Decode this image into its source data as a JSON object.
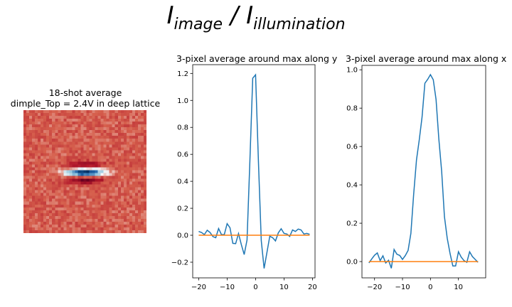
{
  "figure": {
    "suptitle_main": "I",
    "suptitle_sub1": "image",
    "suptitle_sep": " / ",
    "suptitle_sub2": "illumination"
  },
  "image_panel": {
    "title_line1": "18-shot average",
    "title_line2": "dimple_Top = 2.4V in deep lattice",
    "colormap": "RdBu"
  },
  "chart_data": [
    {
      "type": "line",
      "title": "3-pixel average around max along y",
      "xlim": [
        -22.1,
        20.9
      ],
      "ylim": [
        -0.316,
        1.265
      ],
      "xticks": [
        -20,
        -10,
        0,
        10,
        20
      ],
      "yticks": [
        -0.2,
        0.0,
        0.2,
        0.4,
        0.6,
        0.8,
        1.0,
        1.2
      ],
      "series": [
        {
          "name": "profile",
          "color": "#1f77b4",
          "x": [
            -20,
            -19,
            -18,
            -17,
            -16,
            -15,
            -14,
            -13,
            -12,
            -11,
            -10,
            -9,
            -8,
            -7,
            -6,
            -5,
            -4,
            -3,
            -2,
            -1,
            0,
            1,
            2,
            3,
            4,
            5,
            6,
            7,
            8,
            9,
            10,
            11,
            12,
            13,
            14,
            15,
            16,
            17,
            18,
            19
          ],
          "y": [
            0.028,
            0.02,
            0.005,
            0.037,
            0.02,
            -0.01,
            -0.018,
            0.05,
            0.005,
            0.005,
            0.086,
            0.056,
            -0.06,
            -0.062,
            0.013,
            -0.07,
            -0.143,
            -0.035,
            0.55,
            1.165,
            1.19,
            0.55,
            -0.04,
            -0.246,
            -0.127,
            -0.007,
            -0.018,
            -0.042,
            0.018,
            0.048,
            0.014,
            0.009,
            -0.009,
            0.039,
            0.028,
            0.046,
            0.039,
            0.009,
            0.014,
            0.007
          ]
        },
        {
          "name": "zero",
          "color": "#ff7f0e",
          "x": [
            -20,
            19
          ],
          "y": [
            0,
            0
          ]
        }
      ]
    },
    {
      "type": "line",
      "title": "3-pixel average around max along x",
      "xlim": [
        -24.5,
        19.75
      ],
      "ylim": [
        -0.085,
        1.023
      ],
      "xticks": [
        -20,
        -10,
        0,
        10
      ],
      "yticks": [
        0.0,
        0.2,
        0.4,
        0.6,
        0.8,
        1.0
      ],
      "series": [
        {
          "name": "profile",
          "color": "#1f77b4",
          "x": [
            -22,
            -21,
            -20,
            -19,
            -18,
            -17,
            -16,
            -15,
            -14,
            -13,
            -12,
            -11,
            -10,
            -9,
            -8,
            -7,
            -6,
            -5,
            -4,
            -3,
            -2,
            -1,
            0,
            1,
            2,
            3,
            4,
            5,
            6,
            7,
            8,
            9,
            10,
            11,
            12,
            13,
            14,
            15,
            16,
            17
          ],
          "y": [
            -0.007,
            0.014,
            0.033,
            0.045,
            0.005,
            0.03,
            -0.007,
            0.007,
            -0.035,
            0.063,
            0.038,
            0.032,
            0.011,
            0.031,
            0.058,
            0.147,
            0.35,
            0.53,
            0.635,
            0.753,
            0.93,
            0.95,
            0.975,
            0.948,
            0.845,
            0.64,
            0.47,
            0.234,
            0.122,
            0.042,
            -0.023,
            -0.023,
            0.051,
            0.023,
            0.005,
            -0.004,
            0.051,
            0.026,
            0.011,
            -0.004
          ]
        },
        {
          "name": "zero",
          "color": "#ff7f0e",
          "x": [
            -22,
            17
          ],
          "y": [
            0,
            0
          ]
        }
      ]
    }
  ]
}
